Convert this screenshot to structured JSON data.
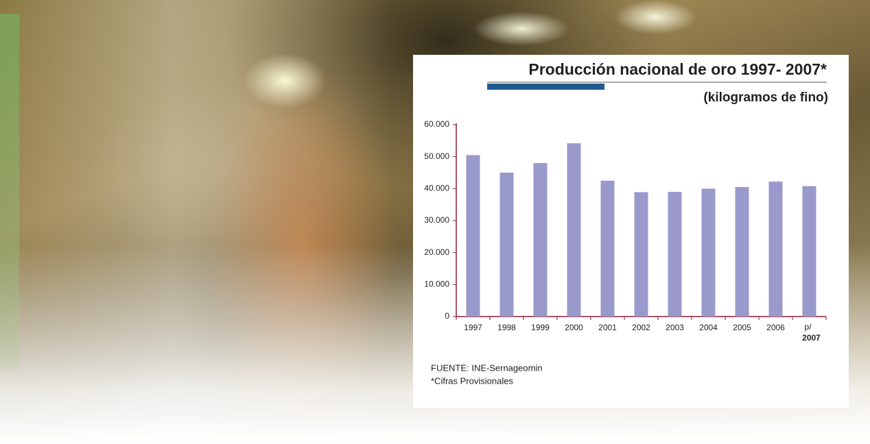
{
  "chart_data": {
    "type": "bar",
    "title": "Producción nacional  de oro 1997- 2007*",
    "subtitle": "(kilogramos de fino)",
    "categories": [
      "1997",
      "1998",
      "1999",
      "2000",
      "2001",
      "2002",
      "2003",
      "2004",
      "2005",
      "2006",
      "2007"
    ],
    "provisional_marker": "p/",
    "values": [
      50500,
      45000,
      48000,
      54200,
      42500,
      38900,
      39000,
      40000,
      40500,
      42200,
      40800
    ],
    "color": "#9999cc",
    "ylim": [
      0,
      60000
    ],
    "yticks": [
      0,
      {
        "value": 10000,
        "label": "10.000"
      },
      {
        "value": 20000,
        "label": "20.000"
      },
      {
        "value": 30000,
        "label": "30.000"
      },
      {
        "value": 40000,
        "label": "40.000"
      },
      {
        "value": 50000,
        "label": "50.000"
      },
      {
        "value": 60000,
        "label": "60.000"
      }
    ],
    "source": "FUENTE: INE-Sernageomin",
    "note": "*Cifras Provisionales"
  }
}
